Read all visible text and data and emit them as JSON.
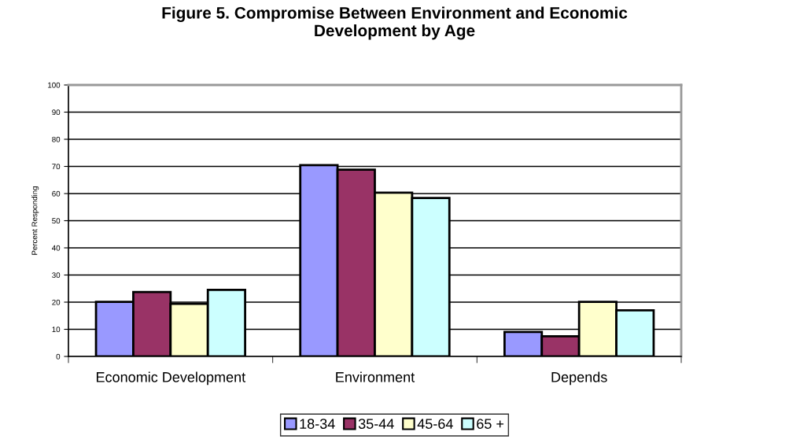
{
  "chart_data": {
    "type": "bar",
    "title": "Figure 5. Compromise Between Environment and Economic\nDevelopment by Age",
    "ylabel": "Percent Responding",
    "categories": [
      "Economic Development",
      "Environment",
      "Depends"
    ],
    "series": [
      {
        "name": "18-34",
        "color": "#9999ff",
        "values": [
          20.1,
          70.5,
          9.0
        ]
      },
      {
        "name": "35-44",
        "color": "#993366",
        "values": [
          23.7,
          68.8,
          7.4
        ]
      },
      {
        "name": "45-64",
        "color": "#ffffcc",
        "values": [
          19.4,
          60.3,
          20.1
        ]
      },
      {
        "name": "65 +",
        "color": "#ccffff",
        "values": [
          24.5,
          58.4,
          17.0
        ]
      }
    ],
    "ylim": [
      0,
      100
    ],
    "yticks": [
      0,
      10,
      20,
      30,
      40,
      50,
      60,
      70,
      80,
      90,
      100
    ],
    "grid": "y",
    "legend": "bottom"
  }
}
